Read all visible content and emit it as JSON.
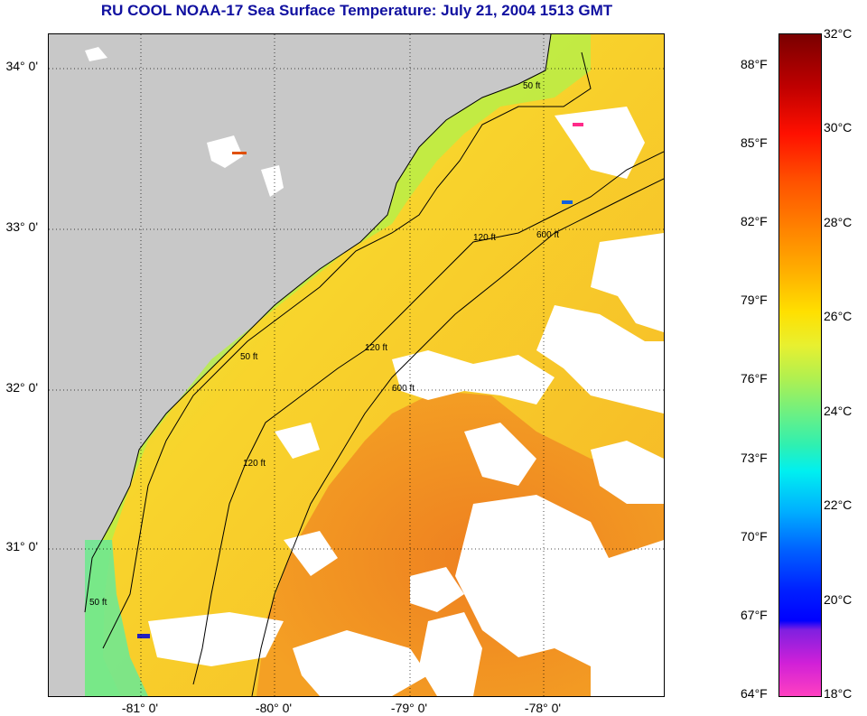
{
  "title": "RU COOL  NOAA-17  Sea Surface Temperature:  July 21, 2004 1513 GMT",
  "latitude_labels": [
    "34° 0'",
    "33° 0'",
    "32° 0'",
    "31° 0'"
  ],
  "longitude_labels": [
    "-81° 0'",
    "-80° 0'",
    "-79° 0'",
    "-78° 0'"
  ],
  "colorbar": {
    "fahrenheit_labels": [
      "88°F",
      "85°F",
      "82°F",
      "79°F",
      "76°F",
      "73°F",
      "70°F",
      "67°F",
      "64°F"
    ],
    "celsius_labels": [
      "32°C",
      "30°C",
      "28°C",
      "26°C",
      "24°C",
      "22°C",
      "20°C",
      "18°C"
    ],
    "range_celsius": [
      18,
      32
    ]
  },
  "contour_labels": {
    "c50": "50 ft",
    "c120": "120 ft",
    "c600": "600 ft"
  },
  "colors": {
    "land": "#c8c8c8",
    "cloud": "#ffffff",
    "warm_offshore": "#f39022",
    "mid_shelf": "#f8c828",
    "nearshore": "#d0ee3a",
    "cool_coastal": "#90ec70",
    "title": "#1010a0"
  }
}
